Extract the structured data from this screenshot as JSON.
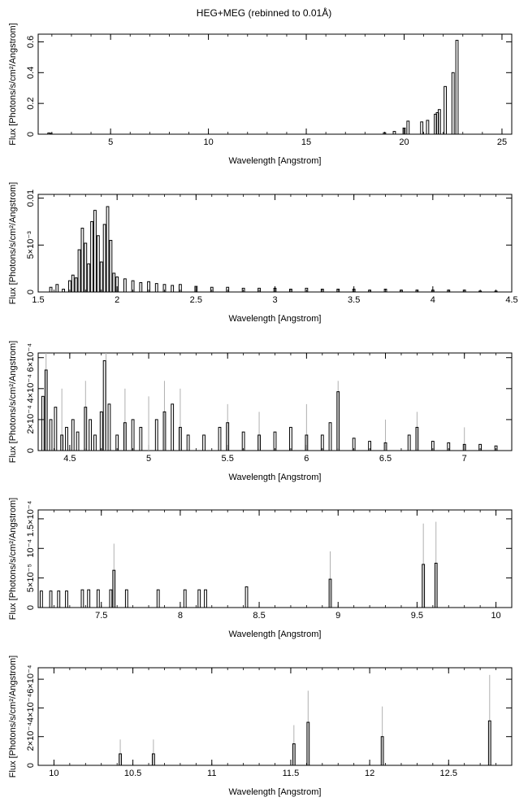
{
  "title": "HEG+MEG (rebinned to 0.01Å)",
  "chart_data": [
    {
      "type": "bar",
      "xlabel": "Wavelength [Angstrom]",
      "ylabel": "Flux [Photons/s/cm²/Angstrom]",
      "xlim": [
        1.3,
        25.5
      ],
      "ylim": [
        0,
        0.65
      ],
      "xticks": [
        {
          "v": 5,
          "label": "5"
        },
        {
          "v": 10,
          "label": "10"
        },
        {
          "v": 15,
          "label": "15"
        },
        {
          "v": 20,
          "label": "20"
        },
        {
          "v": 25,
          "label": "25"
        }
      ],
      "yticks": [
        {
          "v": 0,
          "label": "0"
        },
        {
          "v": 0.2,
          "label": "0.2"
        },
        {
          "v": 0.4,
          "label": "0.4"
        },
        {
          "v": 0.6,
          "label": "0.6"
        }
      ],
      "bars": [
        [
          1.85,
          0.008
        ],
        [
          1.95,
          0.006
        ],
        [
          19.0,
          0.01
        ],
        [
          19.5,
          0.018
        ],
        [
          20.0,
          0.04
        ],
        [
          20.2,
          0.085
        ],
        [
          20.9,
          0.08
        ],
        [
          21.2,
          0.09
        ],
        [
          21.6,
          0.13
        ],
        [
          21.7,
          0.14
        ],
        [
          21.8,
          0.16
        ],
        [
          22.1,
          0.31
        ],
        [
          22.5,
          0.4
        ],
        [
          22.7,
          0.61
        ]
      ],
      "errors": []
    },
    {
      "type": "bar",
      "xlabel": "Wavelength [Angstrom]",
      "ylabel": "Flux [Photons/s/cm²/Angstrom]",
      "xlim": [
        1.5,
        4.5
      ],
      "ylim": [
        0,
        0.0104
      ],
      "xticks": [
        {
          "v": 1.5,
          "label": "1.5"
        },
        {
          "v": 2,
          "label": "2"
        },
        {
          "v": 2.5,
          "label": "2.5"
        },
        {
          "v": 3,
          "label": "3"
        },
        {
          "v": 3.5,
          "label": "3.5"
        },
        {
          "v": 4,
          "label": "4"
        },
        {
          "v": 4.5,
          "label": "4.5"
        }
      ],
      "yticks": [
        {
          "v": 0,
          "label": "0"
        },
        {
          "v": 0.005,
          "label": "5×10⁻³"
        },
        {
          "v": 0.01,
          "label": "0.01"
        }
      ],
      "bars": [
        [
          1.58,
          0.0005
        ],
        [
          1.62,
          0.0008
        ],
        [
          1.66,
          0.0003
        ],
        [
          1.7,
          0.0012
        ],
        [
          1.72,
          0.0018
        ],
        [
          1.74,
          0.0015
        ],
        [
          1.76,
          0.0045
        ],
        [
          1.78,
          0.0068
        ],
        [
          1.8,
          0.0052
        ],
        [
          1.82,
          0.003
        ],
        [
          1.84,
          0.0075
        ],
        [
          1.86,
          0.0087
        ],
        [
          1.88,
          0.006
        ],
        [
          1.9,
          0.0032
        ],
        [
          1.92,
          0.0072
        ],
        [
          1.94,
          0.0091
        ],
        [
          1.96,
          0.0055
        ],
        [
          1.98,
          0.002
        ],
        [
          2.0,
          0.0016
        ],
        [
          2.05,
          0.0014
        ],
        [
          2.1,
          0.0012
        ],
        [
          2.15,
          0.001
        ],
        [
          2.2,
          0.0011
        ],
        [
          2.25,
          0.0009
        ],
        [
          2.3,
          0.0008
        ],
        [
          2.35,
          0.0007
        ],
        [
          2.4,
          0.0008
        ],
        [
          2.5,
          0.0006
        ],
        [
          2.6,
          0.0005
        ],
        [
          2.7,
          0.0005
        ],
        [
          2.8,
          0.0004
        ],
        [
          2.9,
          0.0004
        ],
        [
          3.0,
          0.0004
        ],
        [
          3.1,
          0.0003
        ],
        [
          3.2,
          0.0004
        ],
        [
          3.3,
          0.0003
        ],
        [
          3.4,
          0.0003
        ],
        [
          3.5,
          0.0003
        ],
        [
          3.6,
          0.0002
        ],
        [
          3.7,
          0.0003
        ],
        [
          3.8,
          0.0002
        ],
        [
          3.9,
          0.0002
        ],
        [
          4.0,
          0.0002
        ],
        [
          4.1,
          0.0002
        ],
        [
          4.2,
          0.0002
        ],
        [
          4.3,
          0.0001
        ],
        [
          4.4,
          0.0001
        ]
      ],
      "errors": []
    },
    {
      "type": "bar",
      "xlabel": "Wavelength [Angstrom]",
      "ylabel": "Flux [Photons/s/cm²/Angstrom]",
      "xlim": [
        4.3,
        7.3
      ],
      "ylim": [
        0,
        0.00063
      ],
      "xticks": [
        {
          "v": 4.5,
          "label": "4.5"
        },
        {
          "v": 5,
          "label": "5"
        },
        {
          "v": 5.5,
          "label": "5.5"
        },
        {
          "v": 6,
          "label": "6"
        },
        {
          "v": 6.5,
          "label": "6.5"
        },
        {
          "v": 7,
          "label": "7"
        }
      ],
      "yticks": [
        {
          "v": 0,
          "label": "0"
        },
        {
          "v": 0.0002,
          "label": "2×10⁻⁴"
        },
        {
          "v": 0.0004,
          "label": "4×10⁻⁴"
        },
        {
          "v": 0.0006,
          "label": "6×10⁻⁴"
        }
      ],
      "bars": [
        [
          4.33,
          0.00035
        ],
        [
          4.35,
          0.00052
        ],
        [
          4.38,
          0.0002
        ],
        [
          4.41,
          0.00028
        ],
        [
          4.45,
          0.0001
        ],
        [
          4.48,
          0.00015
        ],
        [
          4.52,
          0.0002
        ],
        [
          4.55,
          0.00012
        ],
        [
          4.6,
          0.00028
        ],
        [
          4.63,
          0.0002
        ],
        [
          4.66,
          0.0001
        ],
        [
          4.7,
          0.00025
        ],
        [
          4.72,
          0.00058
        ],
        [
          4.75,
          0.0003
        ],
        [
          4.8,
          0.0001
        ],
        [
          4.85,
          0.00018
        ],
        [
          4.9,
          0.0002
        ],
        [
          4.95,
          0.00015
        ],
        [
          5.05,
          0.0002
        ],
        [
          5.1,
          0.00025
        ],
        [
          5.15,
          0.0003
        ],
        [
          5.2,
          0.00015
        ],
        [
          5.25,
          0.0001
        ],
        [
          5.35,
          0.0001
        ],
        [
          5.45,
          0.00015
        ],
        [
          5.5,
          0.00018
        ],
        [
          5.6,
          0.00012
        ],
        [
          5.7,
          0.0001
        ],
        [
          5.8,
          0.00012
        ],
        [
          5.9,
          0.00015
        ],
        [
          6.0,
          0.0001
        ],
        [
          6.1,
          0.0001
        ],
        [
          6.15,
          0.00018
        ],
        [
          6.2,
          0.00038
        ],
        [
          6.3,
          8e-05
        ],
        [
          6.4,
          6e-05
        ],
        [
          6.5,
          5e-05
        ],
        [
          6.65,
          0.0001
        ],
        [
          6.7,
          0.00015
        ],
        [
          6.8,
          6e-05
        ],
        [
          6.9,
          5e-05
        ],
        [
          7.0,
          4e-05
        ],
        [
          7.1,
          4e-05
        ],
        [
          7.2,
          3e-05
        ]
      ],
      "errors": [
        [
          4.35,
          0.00063
        ],
        [
          4.45,
          0.0004
        ],
        [
          4.6,
          0.00045
        ],
        [
          4.73,
          0.00063
        ],
        [
          4.85,
          0.0004
        ],
        [
          5.0,
          0.00035
        ],
        [
          5.1,
          0.00045
        ],
        [
          5.2,
          0.0004
        ],
        [
          5.5,
          0.0003
        ],
        [
          5.7,
          0.00025
        ],
        [
          6.0,
          0.0003
        ],
        [
          6.2,
          0.00045
        ],
        [
          6.5,
          0.0002
        ],
        [
          6.7,
          0.00025
        ],
        [
          7.0,
          0.00015
        ]
      ]
    },
    {
      "type": "bar",
      "xlabel": "Wavelength [Angstrom]",
      "ylabel": "Flux [Photons/s/cm²/Angstrom]",
      "xlim": [
        7.1,
        10.1
      ],
      "ylim": [
        0,
        0.000165
      ],
      "xticks": [
        {
          "v": 7.5,
          "label": "7.5"
        },
        {
          "v": 8,
          "label": "8"
        },
        {
          "v": 8.5,
          "label": "8.5"
        },
        {
          "v": 9,
          "label": "9"
        },
        {
          "v": 9.5,
          "label": "9.5"
        },
        {
          "v": 10,
          "label": "10"
        }
      ],
      "yticks": [
        {
          "v": 0,
          "label": "0"
        },
        {
          "v": 5e-05,
          "label": "5×10⁻⁵"
        },
        {
          "v": 0.0001,
          "label": "10⁻⁴"
        },
        {
          "v": 0.00015,
          "label": "1.5×10⁻⁴"
        }
      ],
      "bars": [
        [
          7.12,
          2.8e-05
        ],
        [
          7.18,
          2.8e-05
        ],
        [
          7.23,
          2.8e-05
        ],
        [
          7.28,
          2.8e-05
        ],
        [
          7.38,
          3e-05
        ],
        [
          7.42,
          3e-05
        ],
        [
          7.48,
          3e-05
        ],
        [
          7.56,
          3e-05
        ],
        [
          7.58,
          6.3e-05
        ],
        [
          7.66,
          3e-05
        ],
        [
          7.86,
          3e-05
        ],
        [
          8.03,
          3e-05
        ],
        [
          8.12,
          3e-05
        ],
        [
          8.16,
          3e-05
        ],
        [
          8.42,
          3.5e-05
        ],
        [
          8.95,
          4.8e-05
        ],
        [
          9.54,
          7.3e-05
        ],
        [
          9.62,
          7.5e-05
        ]
      ],
      "errors": [
        [
          7.58,
          0.000108
        ],
        [
          8.95,
          9.5e-05
        ],
        [
          9.54,
          0.000142
        ],
        [
          9.62,
          0.000145
        ]
      ]
    },
    {
      "type": "bar",
      "xlabel": "Wavelength [Angstrom]",
      "ylabel": "Flux [Photons/s/cm²/Angstrom]",
      "xlim": [
        9.9,
        12.9
      ],
      "ylim": [
        0,
        0.00068
      ],
      "xticks": [
        {
          "v": 10,
          "label": "10"
        },
        {
          "v": 10.5,
          "label": "10.5"
        },
        {
          "v": 11,
          "label": "11"
        },
        {
          "v": 11.5,
          "label": "11.5"
        },
        {
          "v": 12,
          "label": "12"
        },
        {
          "v": 12.5,
          "label": "12.5"
        }
      ],
      "yticks": [
        {
          "v": 0,
          "label": "0"
        },
        {
          "v": 0.0002,
          "label": "2×10⁻⁴"
        },
        {
          "v": 0.0004,
          "label": "4×10⁻⁴"
        },
        {
          "v": 0.0006,
          "label": "6×10⁻⁴"
        }
      ],
      "bars": [
        [
          10.42,
          8e-05
        ],
        [
          10.63,
          8e-05
        ],
        [
          11.52,
          0.00015
        ],
        [
          11.61,
          0.0003
        ],
        [
          12.08,
          0.0002
        ],
        [
          12.76,
          0.00031
        ]
      ],
      "errors": [
        [
          10.42,
          0.00018
        ],
        [
          10.63,
          0.00018
        ],
        [
          11.52,
          0.00028
        ],
        [
          11.61,
          0.00052
        ],
        [
          12.08,
          0.00041
        ],
        [
          12.76,
          0.00063
        ]
      ]
    }
  ]
}
